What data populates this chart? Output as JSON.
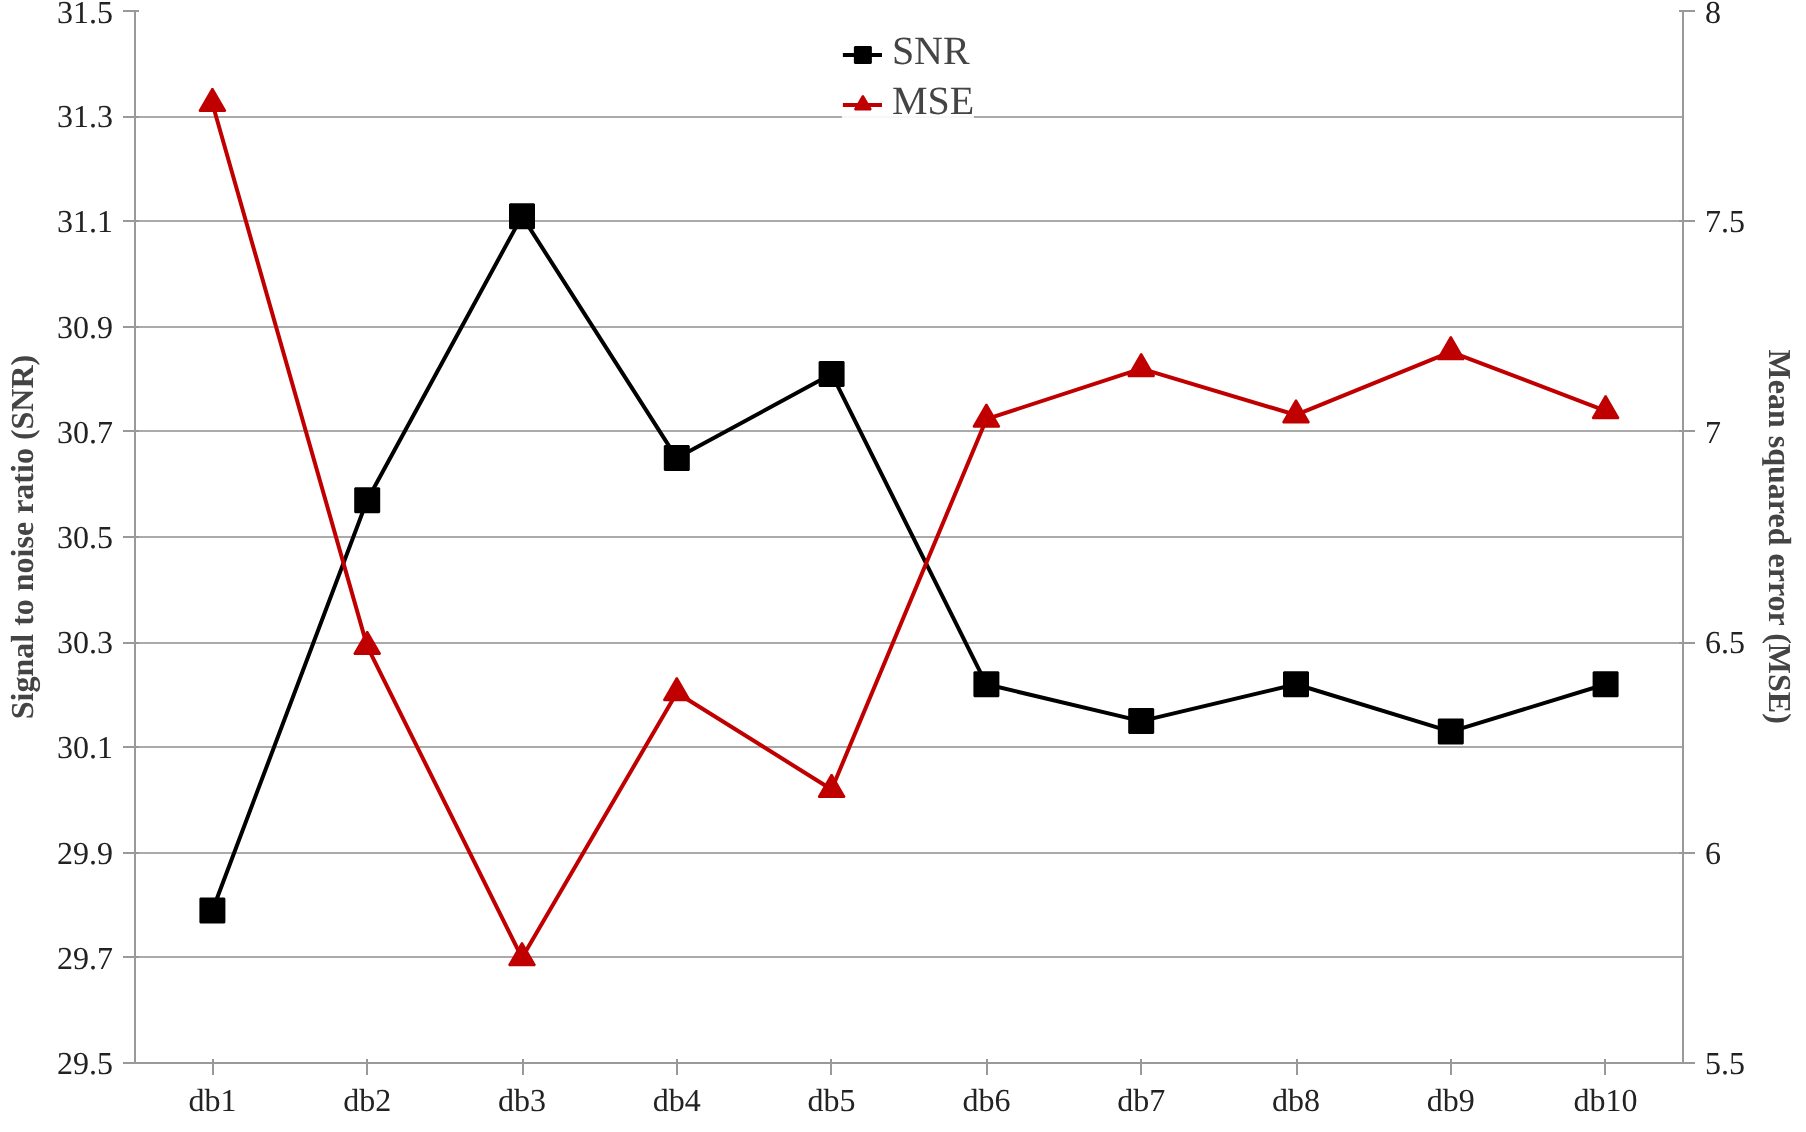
{
  "chart_data": {
    "type": "line",
    "categories": [
      "db1",
      "db2",
      "db3",
      "db4",
      "db5",
      "db6",
      "db7",
      "db8",
      "db9",
      "db10"
    ],
    "series": [
      {
        "name": "SNR",
        "color": "#000000",
        "marker": "square",
        "values": [
          29.79,
          30.57,
          31.11,
          30.65,
          30.81,
          30.22,
          30.15,
          30.22,
          30.13,
          30.22
        ]
      },
      {
        "name": "MSE",
        "color": "#c00000",
        "marker": "triangle",
        "axis": "y2",
        "values": [
          7.78,
          6.49,
          5.75,
          6.38,
          6.15,
          7.03,
          7.15,
          7.04,
          7.19,
          7.05
        ]
      }
    ],
    "ylabel": "Signal to noise ratio (SNR)",
    "y2label": "Mean squared error (MSE)",
    "ylim": [
      29.5,
      31.5
    ],
    "yticks": [
      29.5,
      29.7,
      29.9,
      30.1,
      30.3,
      30.5,
      30.7,
      30.9,
      31.1,
      31.3,
      31.5
    ],
    "y2lim": [
      5.5,
      8
    ],
    "y2ticks": [
      5.5,
      6,
      6.5,
      7,
      7.5,
      8
    ],
    "grid": "y",
    "legend": "top",
    "line_style": "solid"
  }
}
